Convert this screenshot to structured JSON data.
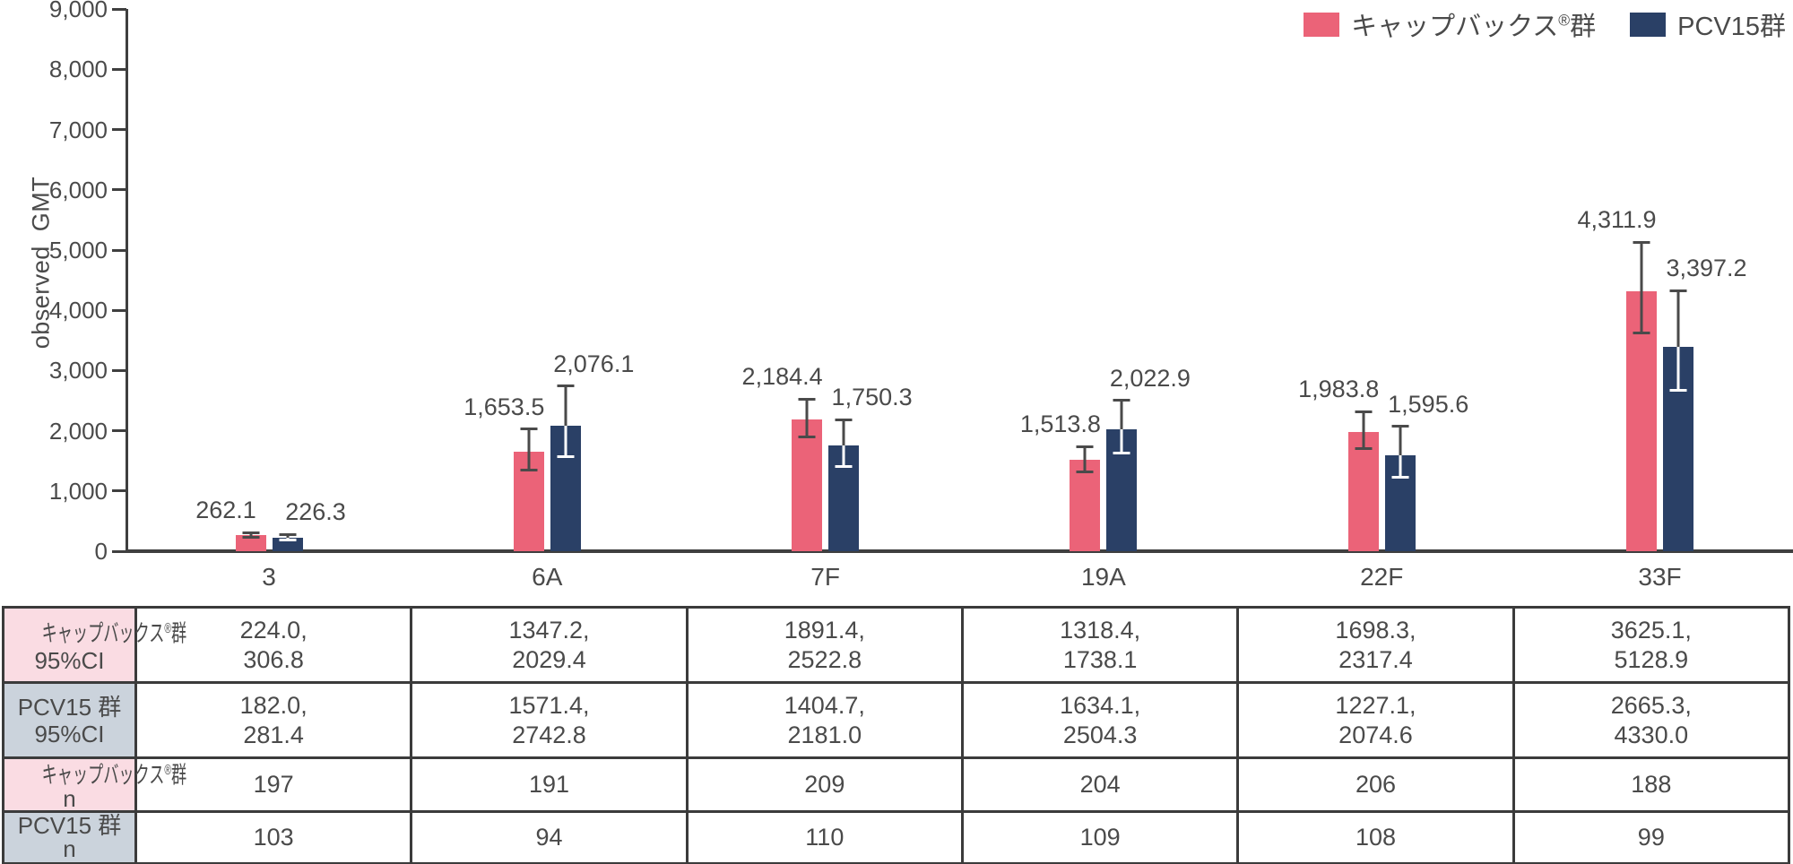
{
  "legend": {
    "items": [
      {
        "label": "キャップバックス®群",
        "color": "#EB6378"
      },
      {
        "label": "PCV15群",
        "color": "#2A4066"
      }
    ]
  },
  "chart_data": {
    "type": "bar",
    "title": "",
    "ylabel": "observed  GMT",
    "xlabel": "",
    "ylim": [
      0,
      9000
    ],
    "ytick_step": 1000,
    "grid": false,
    "legend_position": "top-right",
    "categories": [
      "3",
      "6A",
      "7F",
      "19A",
      "22F",
      "33F"
    ],
    "series": [
      {
        "name": "キャップバックス®群",
        "color": "#EB6378",
        "values": [
          262.1,
          1653.5,
          2184.4,
          1513.8,
          1983.8,
          4311.9
        ],
        "ci_low": [
          224.0,
          1347.2,
          1891.4,
          1318.4,
          1698.3,
          3625.1
        ],
        "ci_high": [
          306.8,
          2029.4,
          2522.8,
          1738.1,
          2317.4,
          5128.9
        ],
        "n": [
          197,
          191,
          209,
          204,
          206,
          188
        ]
      },
      {
        "name": "PCV15群",
        "color": "#2A4066",
        "values": [
          226.3,
          2076.1,
          1750.3,
          2022.9,
          1595.6,
          3397.2
        ],
        "ci_low": [
          182.0,
          1571.4,
          1404.7,
          1634.1,
          1227.1,
          2665.3
        ],
        "ci_high": [
          281.4,
          2742.8,
          2181.0,
          2504.3,
          2074.6,
          4330.0
        ],
        "n": [
          103,
          94,
          110,
          109,
          108,
          99
        ]
      }
    ]
  },
  "table": {
    "row_headers": [
      {
        "line1": "キャップバックス®群",
        "line2": "95%CI",
        "bg": "pink"
      },
      {
        "line1": "PCV15 群",
        "line2": "95%CI",
        "bg": "blue"
      },
      {
        "line1": "キャップバックス®群",
        "line2": "n",
        "bg": "pink"
      },
      {
        "line1": "PCV15 群",
        "line2": "n",
        "bg": "blue"
      }
    ],
    "rows": [
      [
        "224.0,\n306.8",
        "1347.2,\n2029.4",
        "1891.4,\n2522.8",
        "1318.4,\n1738.1",
        "1698.3,\n2317.4",
        "3625.1,\n5128.9"
      ],
      [
        "182.0,\n281.4",
        "1571.4,\n2742.8",
        "1404.7,\n2181.0",
        "1634.1,\n2504.3",
        "1227.1,\n2074.6",
        "2665.3,\n4330.0"
      ],
      [
        "197",
        "191",
        "209",
        "204",
        "206",
        "188"
      ],
      [
        "103",
        "94",
        "110",
        "109",
        "108",
        "99"
      ]
    ]
  }
}
